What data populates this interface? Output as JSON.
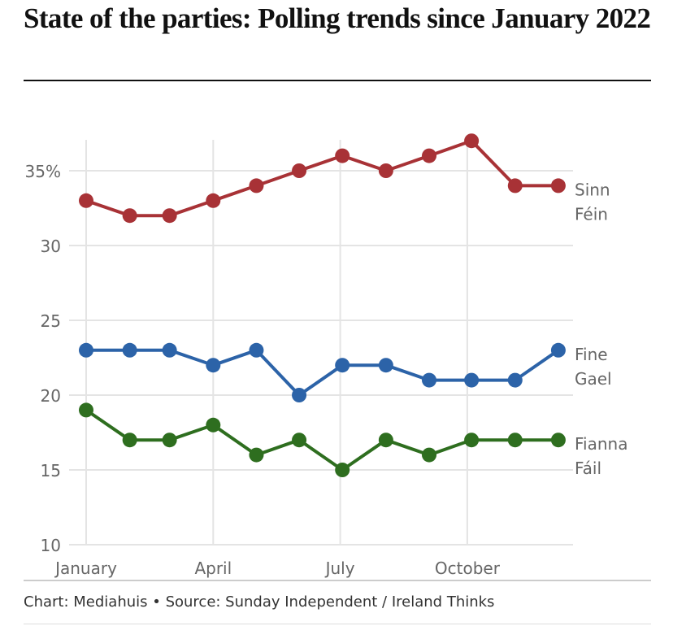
{
  "title": "State of the parties: Polling trends since January 2022",
  "footer": "Chart: Mediahuis • Source: Sunday Independent / Ireland Thinks",
  "chart_data": {
    "type": "line",
    "title": "State of the parties: Polling trends since January 2022",
    "xlabel": "",
    "ylabel": "",
    "ylim": [
      10,
      37
    ],
    "grid": true,
    "legend": "direct labels at right end of lines",
    "x_ticks": [
      {
        "index": 0,
        "label": "January"
      },
      {
        "index": 3,
        "label": "April"
      },
      {
        "index": 6,
        "label": "July"
      },
      {
        "index": 9,
        "label": "October"
      }
    ],
    "y_ticks": [
      {
        "value": 35,
        "label": "35%"
      },
      {
        "value": 30,
        "label": "30"
      },
      {
        "value": 25,
        "label": "25"
      },
      {
        "value": 20,
        "label": "20"
      },
      {
        "value": 15,
        "label": "15"
      },
      {
        "value": 10,
        "label": "10"
      }
    ],
    "x_positions": [
      0,
      1.03,
      1.97,
      3,
      4.02,
      5.03,
      6.05,
      7.08,
      8.1,
      9.1,
      10.13,
      11.15
    ],
    "series": [
      {
        "name": "Sinn Féin",
        "label_lines": [
          "Sinn",
          "Féin"
        ],
        "color": "#a83236",
        "values": [
          33,
          32,
          32,
          33,
          34,
          35,
          36,
          35,
          36,
          37,
          34,
          34
        ]
      },
      {
        "name": "Fine Gael",
        "label_lines": [
          "Fine",
          "Gael"
        ],
        "color": "#2c63a8",
        "values": [
          23,
          23,
          23,
          22,
          23,
          20,
          22,
          22,
          21,
          21,
          21,
          23
        ]
      },
      {
        "name": "Fianna Fáil",
        "label_lines": [
          "Fianna",
          "Fáil"
        ],
        "color": "#2e6e1f",
        "values": [
          19,
          17,
          17,
          18,
          16,
          17,
          15,
          17,
          16,
          17,
          17,
          17
        ]
      }
    ],
    "colors": {
      "grid": "#e4e4e4",
      "tick_text": "#666666"
    }
  }
}
